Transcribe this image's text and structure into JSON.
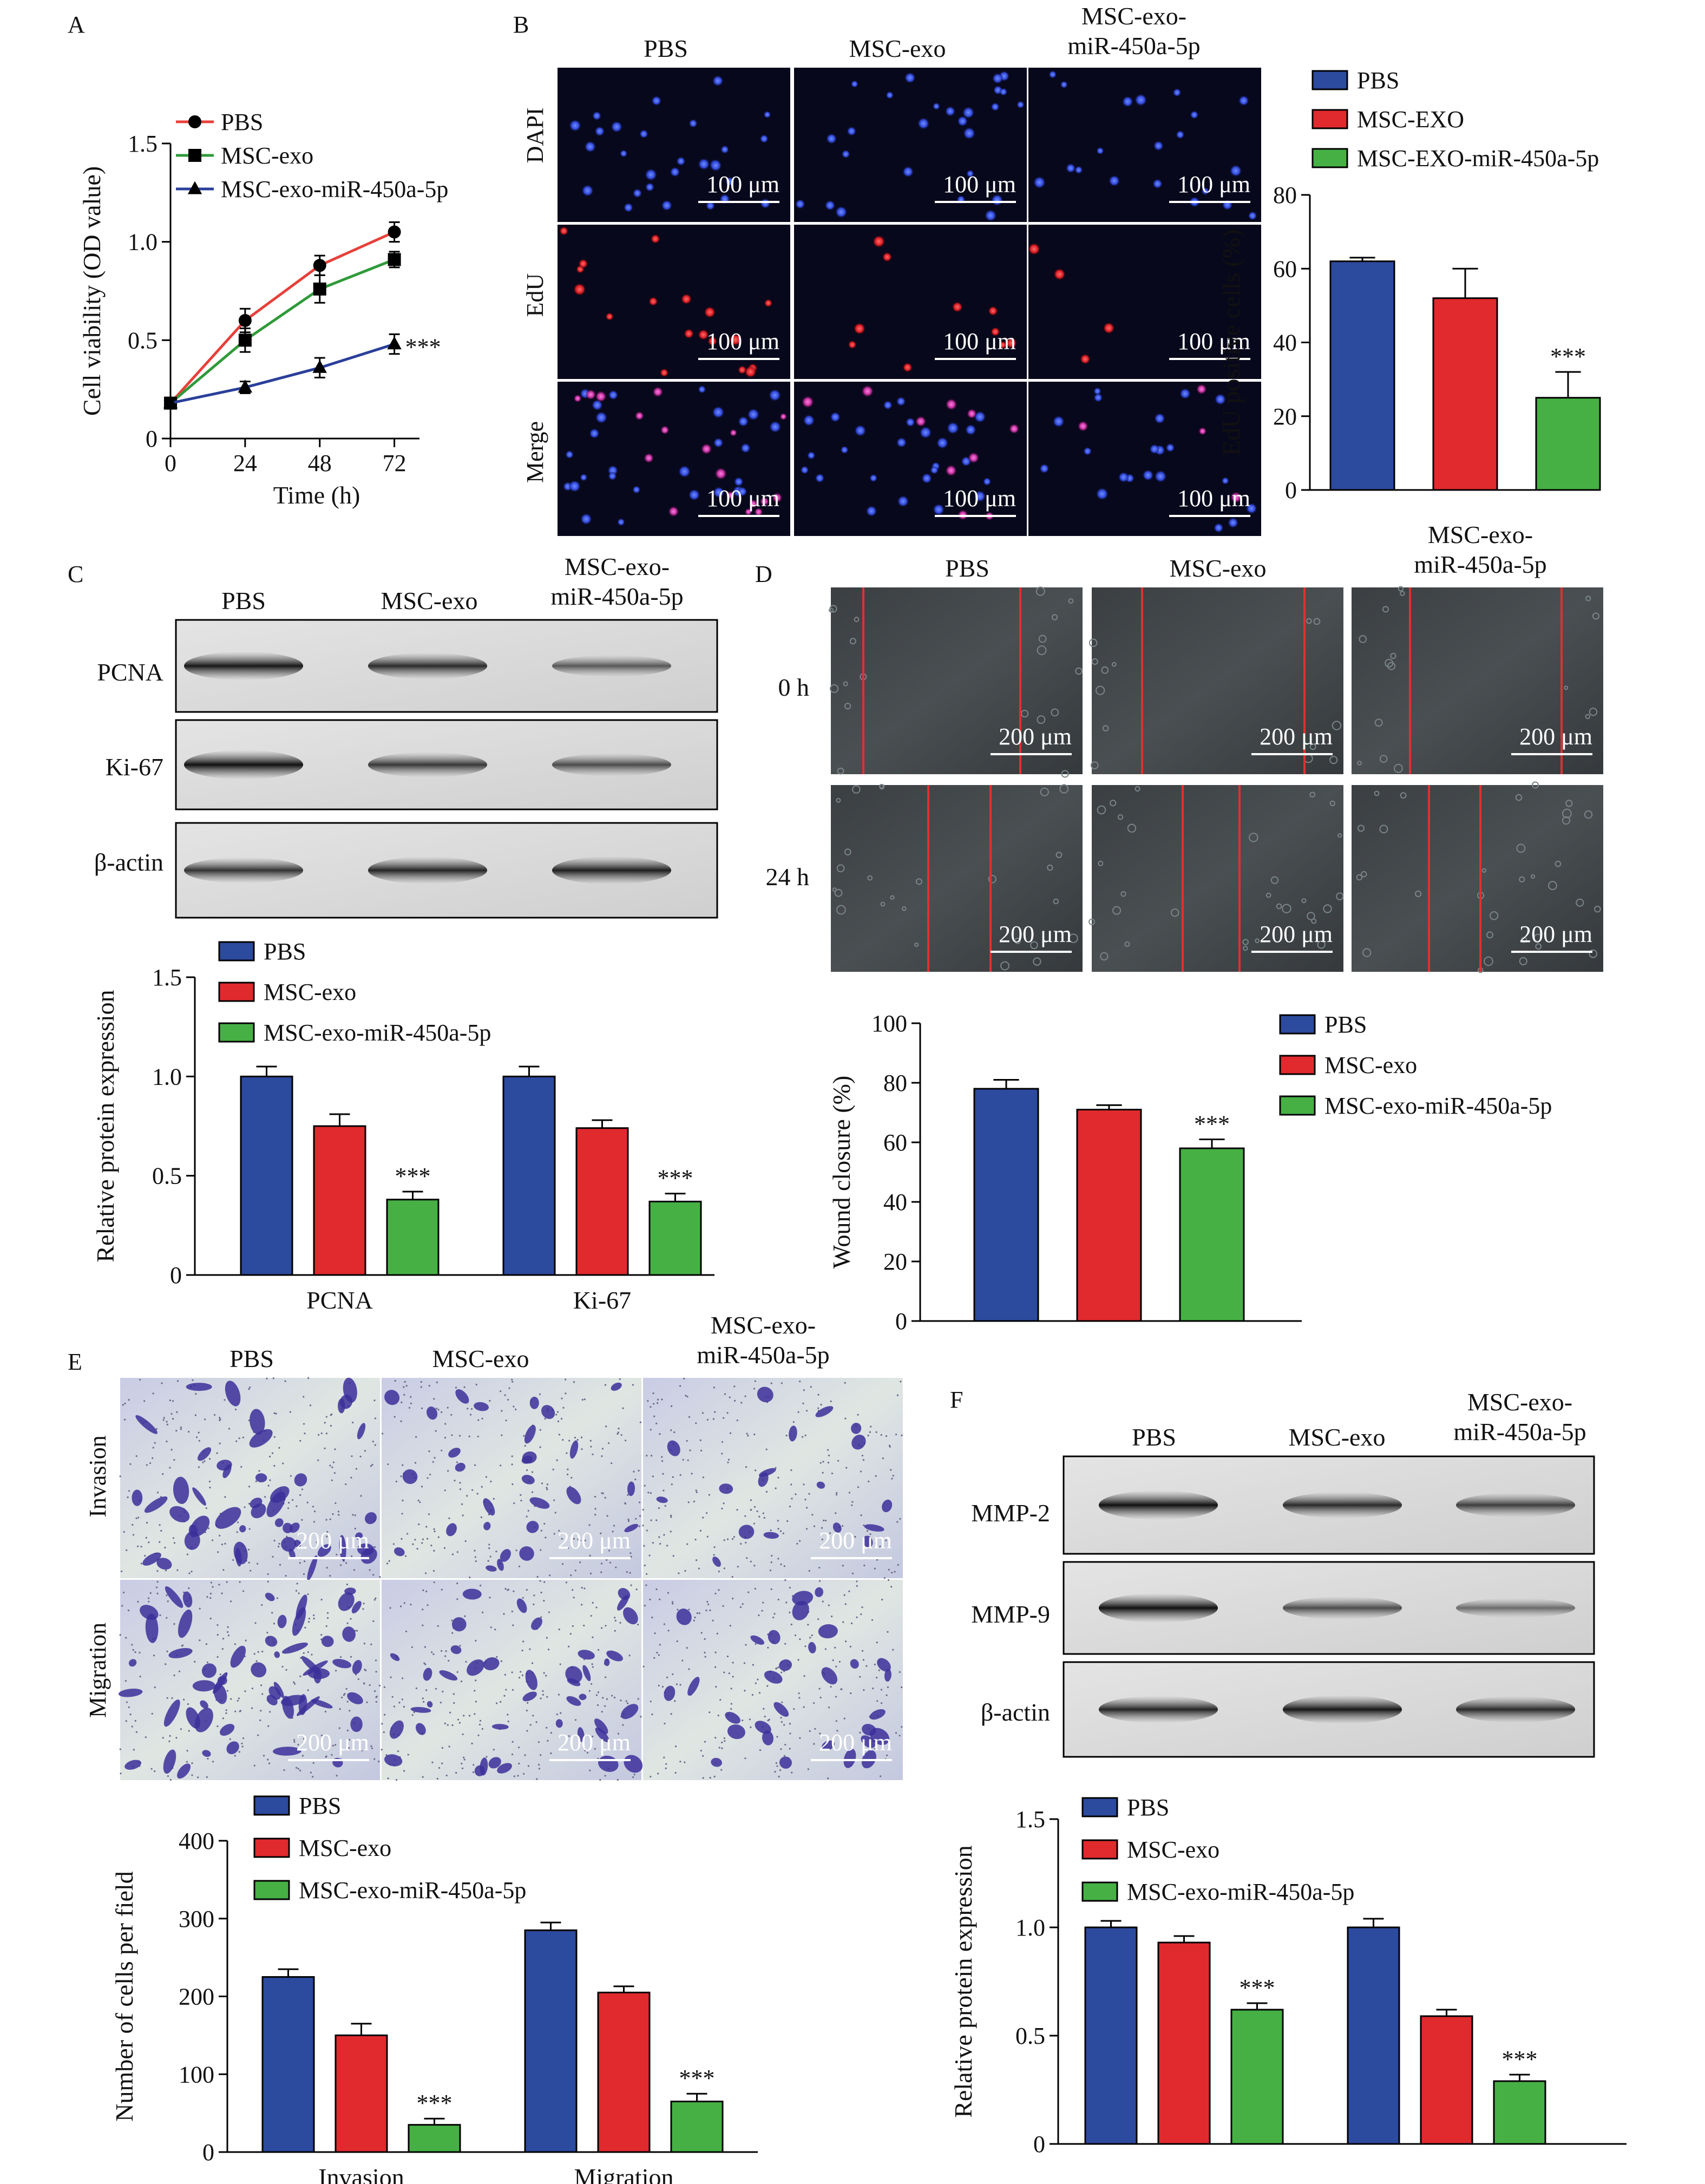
{
  "colors": {
    "pbs": "#2c4a9e",
    "msc_exo": "#e02a2e",
    "msc_exo_mir": "#46b045",
    "line_pbs": "#e8403a",
    "line_msc_exo": "#2f9a3a",
    "line_mir": "#2a3f9a",
    "wound_line": "#e03030"
  },
  "panels": {
    "a": "A",
    "b": "B",
    "c": "C",
    "d": "D",
    "e": "E",
    "f": "F"
  },
  "groups": {
    "pbs": "PBS",
    "msc_exo": "MSC-exo",
    "mir_line1": "MSC-exo-",
    "mir_line2": "miR-450a-5p"
  },
  "scale_bars": {
    "b": "100 μm",
    "d": "200 μm",
    "e": "200 μm"
  },
  "significance": "***",
  "panel_b": {
    "rows": [
      "DAPI",
      "EdU",
      "Merge"
    ],
    "stains": [
      "dapi",
      "edu",
      "merge"
    ]
  },
  "panel_c": {
    "blots": [
      "PCNA",
      "Ki-67",
      "β-actin"
    ]
  },
  "panel_d": {
    "rows": [
      "0 h",
      "24 h"
    ]
  },
  "panel_e": {
    "rows": [
      "Invasion",
      "Migration"
    ]
  },
  "panel_f": {
    "blots": [
      "MMP-2",
      "MMP-9",
      "β-actin"
    ]
  },
  "chart_data": [
    {
      "id": "a",
      "type": "line",
      "xlabel": "Time (h)",
      "ylabel": "Cell viability (OD value)",
      "x": [
        0,
        24,
        48,
        72
      ],
      "xticks": [
        "0",
        "24",
        "48",
        "72"
      ],
      "ylim": [
        0,
        1.5
      ],
      "yticks": [
        "0",
        "0.5",
        "1.0",
        "1.5"
      ],
      "legend_position": "top-left",
      "series": [
        {
          "name": "PBS",
          "marker": "circle",
          "values": [
            0.18,
            0.6,
            0.88,
            1.05
          ],
          "errors": [
            0.02,
            0.06,
            0.05,
            0.05
          ]
        },
        {
          "name": "MSC-exo",
          "marker": "square",
          "values": [
            0.18,
            0.5,
            0.76,
            0.91
          ],
          "errors": [
            0.02,
            0.06,
            0.07,
            0.04
          ]
        },
        {
          "name": "MSC-exo-miR-450a-5p",
          "marker": "triangle",
          "values": [
            0.18,
            0.26,
            0.36,
            0.48
          ],
          "errors": [
            0.02,
            0.03,
            0.05,
            0.05
          ]
        }
      ]
    },
    {
      "id": "b",
      "type": "bar",
      "ylabel": "EdU positive cells (%)",
      "ylim": [
        0,
        80
      ],
      "yticks": [
        "0",
        "20",
        "40",
        "60",
        "80"
      ],
      "categories": [
        ""
      ],
      "legend_position": "top",
      "series": [
        {
          "name": "PBS",
          "values": [
            62
          ],
          "errors": [
            1
          ]
        },
        {
          "name": "MSC-EXO",
          "values": [
            52
          ],
          "errors": [
            8
          ]
        },
        {
          "name": "MSC-EXO-miR-450a-5p",
          "values": [
            25
          ],
          "errors": [
            7
          ]
        }
      ]
    },
    {
      "id": "c",
      "type": "bar",
      "ylabel": "Relative protein expression",
      "ylim": [
        0,
        1.5
      ],
      "yticks": [
        "0",
        "0.5",
        "1.0",
        "1.5"
      ],
      "categories": [
        "PCNA",
        "Ki-67"
      ],
      "legend_position": "top",
      "series": [
        {
          "name": "PBS",
          "values": [
            1.0,
            1.0
          ],
          "errors": [
            0.05,
            0.05
          ]
        },
        {
          "name": "MSC-exo",
          "values": [
            0.75,
            0.74
          ],
          "errors": [
            0.06,
            0.04
          ]
        },
        {
          "name": "MSC-exo-miR-450a-5p",
          "values": [
            0.38,
            0.37
          ],
          "errors": [
            0.04,
            0.04
          ]
        }
      ]
    },
    {
      "id": "d",
      "type": "bar",
      "ylabel": "Wound closure (%)",
      "ylim": [
        0,
        100
      ],
      "yticks": [
        "0",
        "20",
        "40",
        "60",
        "80",
        "100"
      ],
      "categories": [
        ""
      ],
      "legend_position": "right",
      "series": [
        {
          "name": "PBS",
          "values": [
            78
          ],
          "errors": [
            3
          ]
        },
        {
          "name": "MSC-exo",
          "values": [
            71
          ],
          "errors": [
            1.5
          ]
        },
        {
          "name": "MSC-exo-miR-450a-5p",
          "values": [
            58
          ],
          "errors": [
            3
          ]
        }
      ]
    },
    {
      "id": "e",
      "type": "bar",
      "ylabel": "Number of cells per field",
      "ylim": [
        0,
        400
      ],
      "yticks": [
        "0",
        "100",
        "200",
        "300",
        "400"
      ],
      "categories": [
        "Invasion",
        "Migration"
      ],
      "legend_position": "top",
      "series": [
        {
          "name": "PBS",
          "values": [
            225,
            285
          ],
          "errors": [
            10,
            10
          ]
        },
        {
          "name": "MSC-exo",
          "values": [
            150,
            205
          ],
          "errors": [
            15,
            8
          ]
        },
        {
          "name": "MSC-exo-miR-450a-5p",
          "values": [
            35,
            65
          ],
          "errors": [
            8,
            10
          ]
        }
      ]
    },
    {
      "id": "f",
      "type": "bar",
      "ylabel": "Relative protein expression",
      "ylim": [
        0,
        1.5
      ],
      "yticks": [
        "0",
        "0.5",
        "1.0",
        "1.5"
      ],
      "categories": [
        "",
        ""
      ],
      "legend_position": "top",
      "series": [
        {
          "name": "PBS",
          "values": [
            1.0,
            1.0
          ],
          "errors": [
            0.03,
            0.04
          ]
        },
        {
          "name": "MSC-exo",
          "values": [
            0.93,
            0.59
          ],
          "errors": [
            0.03,
            0.03
          ]
        },
        {
          "name": "MSC-exo-miR-450a-5p",
          "values": [
            0.62,
            0.29
          ],
          "errors": [
            0.03,
            0.03
          ]
        }
      ]
    }
  ]
}
